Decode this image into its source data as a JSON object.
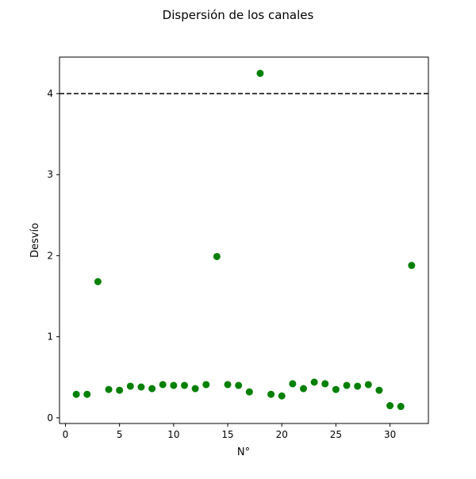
{
  "chart_data": {
    "type": "scatter",
    "title": "Dispersión de los canales",
    "xlabel": "N°",
    "ylabel": "Desvío",
    "xlim": [
      -0.55,
      33.55
    ],
    "ylim": [
      -0.07,
      4.45
    ],
    "x_ticks": [
      0,
      5,
      10,
      15,
      20,
      25,
      30
    ],
    "y_ticks": [
      0,
      1,
      2,
      3,
      4
    ],
    "grid": false,
    "reference_line": {
      "y": 4,
      "style": "dashed",
      "color": "#000000"
    },
    "series": [
      {
        "color": "#008000",
        "x": [
          1,
          2,
          3,
          4,
          5,
          6,
          7,
          8,
          9,
          10,
          11,
          12,
          13,
          14,
          15,
          16,
          17,
          18,
          19,
          20,
          21,
          22,
          23,
          24,
          25,
          26,
          27,
          28,
          29,
          30,
          31,
          32
        ],
        "y": [
          0.29,
          0.29,
          1.68,
          0.35,
          0.34,
          0.39,
          0.38,
          0.36,
          0.41,
          0.4,
          0.4,
          0.36,
          0.41,
          1.99,
          0.41,
          0.4,
          0.32,
          4.25,
          0.29,
          0.27,
          0.42,
          0.36,
          0.44,
          0.42,
          0.35,
          0.4,
          0.39,
          0.41,
          0.34,
          0.15,
          0.14,
          1.88
        ]
      }
    ]
  }
}
